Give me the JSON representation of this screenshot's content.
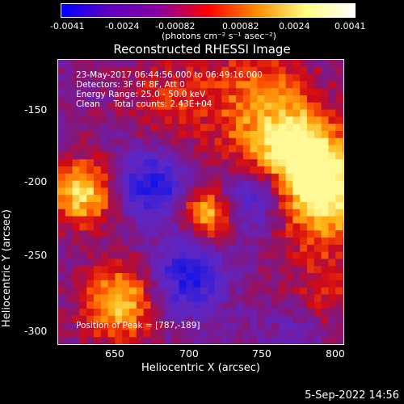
{
  "colorbar": {
    "tick_labels": [
      "-0.0041",
      "-0.0024",
      "-0.00082",
      "0.00082",
      "0.0024",
      "0.0041"
    ],
    "units": "(photons cm⁻² s⁻¹ asec⁻²)",
    "colors": [
      "#0000ff",
      "#6000c0",
      "#8a00a0",
      "#ff0000",
      "#ff8c00",
      "#ffff80",
      "#ffffff"
    ]
  },
  "plot": {
    "title": "Reconstructed RHESSI Image",
    "info_lines": [
      "23-May-2017 06:44:56.000 to 06:49:16.000",
      "Detectors: 3F 6F 8F, Att 0",
      "Energy Range: 25.0 - 50.0 keV",
      "Clean     Total counts: 2.43E+04"
    ],
    "peak_label": "Position of Peak = [787,-189]",
    "x_axis_label": "Heliocentric X (arcsec)",
    "y_axis_label": "Heliocentric Y (arcsec)",
    "x_ticks": [
      "650",
      "700",
      "750",
      "800"
    ],
    "y_ticks": [
      "-150",
      "-200",
      "-250",
      "-300"
    ]
  },
  "footer": {
    "timestamp": "5-Sep-2022 14:56"
  }
}
